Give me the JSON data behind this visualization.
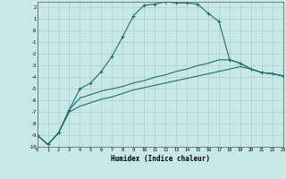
{
  "xlabel": "Humidex (Indice chaleur)",
  "bg_color": "#c8e8e8",
  "grid_color": "#a8d0d0",
  "line_color": "#1a7070",
  "xmin": 0,
  "xmax": 23,
  "ymin": -10,
  "ymax": 2.5,
  "x": [
    0,
    1,
    2,
    3,
    4,
    5,
    6,
    7,
    8,
    9,
    10,
    11,
    12,
    13,
    14,
    15,
    16,
    17,
    18,
    19,
    20,
    21,
    22,
    23
  ],
  "line1": [
    -9.0,
    -9.8,
    -8.8,
    -6.8,
    -5.0,
    -4.5,
    -3.5,
    -2.2,
    -0.5,
    1.3,
    2.2,
    2.3,
    2.5,
    2.4,
    2.4,
    2.3,
    1.5,
    0.8,
    -2.5,
    -2.8,
    -3.3,
    -3.6,
    -3.7,
    -3.9
  ],
  "line2": [
    -9.0,
    -9.8,
    -8.8,
    -6.8,
    -5.8,
    -5.5,
    -5.2,
    -5.0,
    -4.8,
    -4.5,
    -4.3,
    -4.0,
    -3.8,
    -3.5,
    -3.3,
    -3.0,
    -2.8,
    -2.5,
    -2.5,
    -2.8,
    -3.3,
    -3.6,
    -3.7,
    -3.9
  ],
  "line3": [
    -9.0,
    -9.8,
    -8.8,
    -7.0,
    -6.5,
    -6.2,
    -5.9,
    -5.7,
    -5.4,
    -5.1,
    -4.9,
    -4.7,
    -4.5,
    -4.3,
    -4.1,
    -3.9,
    -3.7,
    -3.5,
    -3.3,
    -3.1,
    -3.3,
    -3.6,
    -3.7,
    -3.9
  ]
}
